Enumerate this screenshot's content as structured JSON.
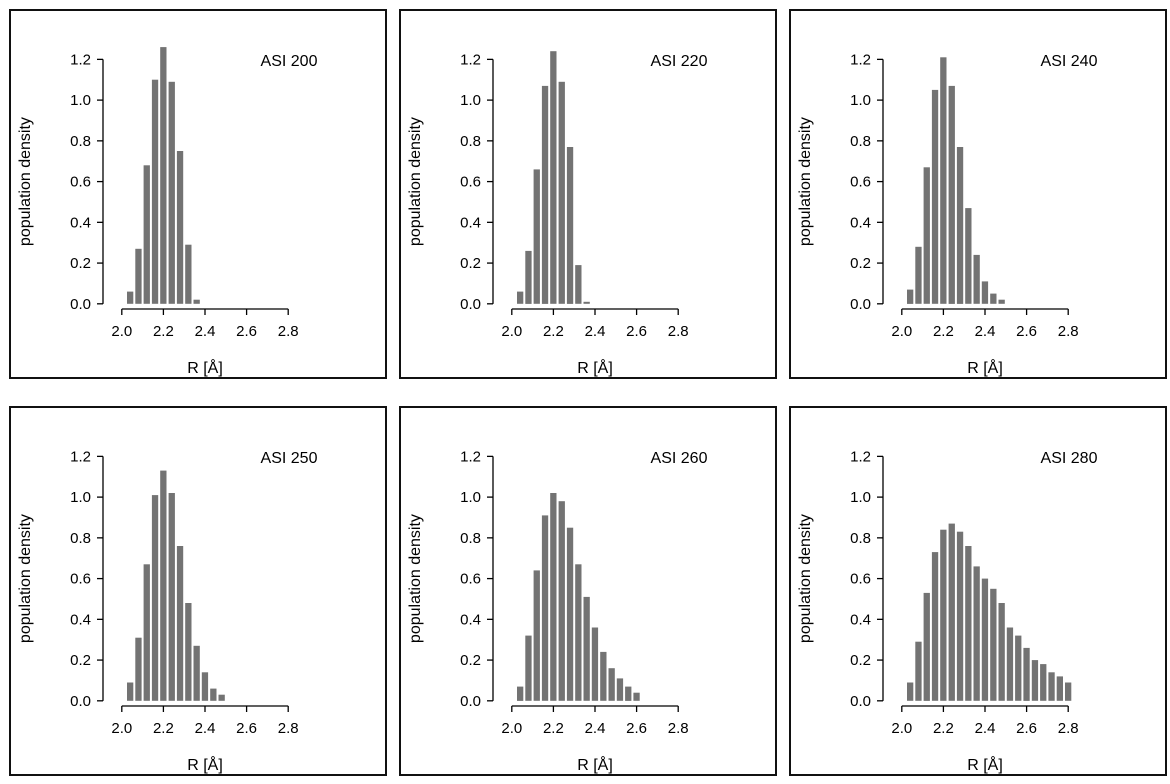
{
  "chart_data": [
    {
      "type": "bar",
      "annotation": "ASI 200",
      "xlabel": "R [Å]",
      "ylabel": "population density",
      "xlim": [
        1.9,
        2.9
      ],
      "ylim": [
        -0.05,
        1.3
      ],
      "xticks": [
        "2.0",
        "2.2",
        "2.4",
        "2.6",
        "2.8"
      ],
      "yticks": [
        "0.0",
        "0.2",
        "0.4",
        "0.6",
        "0.8",
        "1.0",
        "1.2"
      ],
      "bar_color": "#737373",
      "bin_width": 0.04,
      "bins": [
        2.04,
        2.08,
        2.12,
        2.16,
        2.2,
        2.24,
        2.28,
        2.32,
        2.36,
        2.4,
        2.44
      ],
      "values": [
        0.06,
        0.27,
        0.68,
        1.1,
        1.26,
        1.09,
        0.75,
        0.29,
        0.02,
        0.0,
        0.0
      ]
    },
    {
      "type": "bar",
      "annotation": "ASI 220",
      "xlabel": "R [Å]",
      "ylabel": "population density",
      "xlim": [
        1.9,
        2.9
      ],
      "ylim": [
        -0.05,
        1.3
      ],
      "xticks": [
        "2.0",
        "2.2",
        "2.4",
        "2.6",
        "2.8"
      ],
      "yticks": [
        "0.0",
        "0.2",
        "0.4",
        "0.6",
        "0.8",
        "1.0",
        "1.2"
      ],
      "bar_color": "#737373",
      "bin_width": 0.04,
      "bins": [
        2.04,
        2.08,
        2.12,
        2.16,
        2.2,
        2.24,
        2.28,
        2.32,
        2.36,
        2.4,
        2.44
      ],
      "values": [
        0.06,
        0.26,
        0.66,
        1.07,
        1.24,
        1.09,
        0.77,
        0.19,
        0.01,
        0.0,
        0.0
      ]
    },
    {
      "type": "bar",
      "annotation": "ASI 240",
      "xlabel": "R [Å]",
      "ylabel": "population density",
      "xlim": [
        1.9,
        2.9
      ],
      "ylim": [
        -0.05,
        1.3
      ],
      "xticks": [
        "2.0",
        "2.2",
        "2.4",
        "2.6",
        "2.8"
      ],
      "yticks": [
        "0.0",
        "0.2",
        "0.4",
        "0.6",
        "0.8",
        "1.0",
        "1.2"
      ],
      "bar_color": "#737373",
      "bin_width": 0.04,
      "bins": [
        2.04,
        2.08,
        2.12,
        2.16,
        2.2,
        2.24,
        2.28,
        2.32,
        2.36,
        2.4,
        2.44,
        2.48,
        2.52,
        2.56
      ],
      "values": [
        0.07,
        0.28,
        0.67,
        1.05,
        1.21,
        1.07,
        0.77,
        0.47,
        0.24,
        0.11,
        0.05,
        0.02,
        0.0,
        0.0
      ]
    },
    {
      "type": "bar",
      "annotation": "ASI 250",
      "xlabel": "R [Å]",
      "ylabel": "population density",
      "xlim": [
        1.9,
        2.9
      ],
      "ylim": [
        -0.05,
        1.3
      ],
      "xticks": [
        "2.0",
        "2.2",
        "2.4",
        "2.6",
        "2.8"
      ],
      "yticks": [
        "0.0",
        "0.2",
        "0.4",
        "0.6",
        "0.8",
        "1.0",
        "1.2"
      ],
      "bar_color": "#737373",
      "bin_width": 0.04,
      "bins": [
        2.04,
        2.08,
        2.12,
        2.16,
        2.2,
        2.24,
        2.28,
        2.32,
        2.36,
        2.4,
        2.44,
        2.48,
        2.52,
        2.56
      ],
      "values": [
        0.09,
        0.31,
        0.67,
        1.01,
        1.13,
        1.02,
        0.76,
        0.48,
        0.27,
        0.14,
        0.06,
        0.03,
        0.0,
        0.0
      ]
    },
    {
      "type": "bar",
      "annotation": "ASI 260",
      "xlabel": "R [Å]",
      "ylabel": "population density",
      "xlim": [
        1.9,
        2.9
      ],
      "ylim": [
        -0.05,
        1.3
      ],
      "xticks": [
        "2.0",
        "2.2",
        "2.4",
        "2.6",
        "2.8"
      ],
      "yticks": [
        "0.0",
        "0.2",
        "0.4",
        "0.6",
        "0.8",
        "1.0",
        "1.2"
      ],
      "bar_color": "#737373",
      "bin_width": 0.04,
      "bins": [
        2.04,
        2.08,
        2.12,
        2.16,
        2.2,
        2.24,
        2.28,
        2.32,
        2.36,
        2.4,
        2.44,
        2.48,
        2.52,
        2.56,
        2.6,
        2.64,
        2.68
      ],
      "values": [
        0.07,
        0.32,
        0.64,
        0.91,
        1.02,
        0.98,
        0.85,
        0.67,
        0.51,
        0.36,
        0.24,
        0.16,
        0.11,
        0.07,
        0.04,
        0.0,
        0.0
      ]
    },
    {
      "type": "bar",
      "annotation": "ASI 280",
      "xlabel": "R [Å]",
      "ylabel": "population density",
      "xlim": [
        1.9,
        2.9
      ],
      "ylim": [
        -0.05,
        1.3
      ],
      "xticks": [
        "2.0",
        "2.2",
        "2.4",
        "2.6",
        "2.8"
      ],
      "yticks": [
        "0.0",
        "0.2",
        "0.4",
        "0.6",
        "0.8",
        "1.0",
        "1.2"
      ],
      "bar_color": "#737373",
      "bin_width": 0.04,
      "bins": [
        2.04,
        2.08,
        2.12,
        2.16,
        2.2,
        2.24,
        2.28,
        2.32,
        2.36,
        2.4,
        2.44,
        2.48,
        2.52,
        2.56,
        2.6,
        2.64,
        2.68,
        2.72,
        2.76,
        2.8,
        2.84
      ],
      "values": [
        0.09,
        0.29,
        0.53,
        0.73,
        0.84,
        0.87,
        0.83,
        0.76,
        0.66,
        0.6,
        0.55,
        0.48,
        0.36,
        0.32,
        0.26,
        0.2,
        0.18,
        0.14,
        0.12,
        0.09,
        0.0
      ]
    }
  ]
}
